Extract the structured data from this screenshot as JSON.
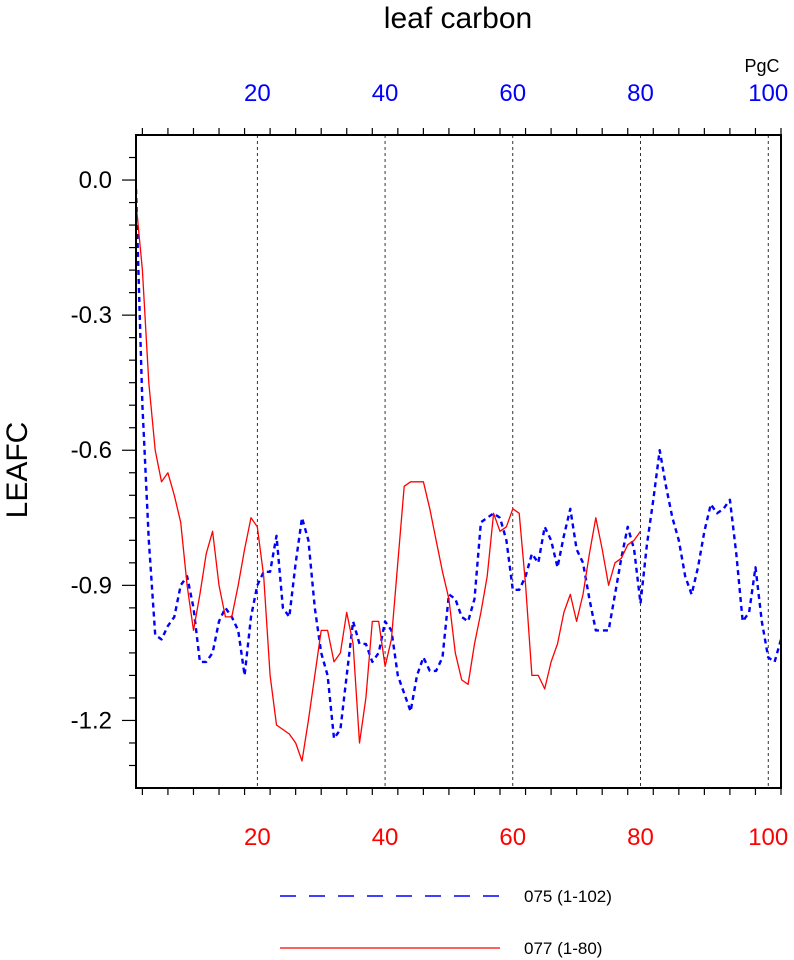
{
  "chart_data": {
    "type": "line",
    "title": "leaf carbon",
    "ylabel": "LEAFC",
    "top_axis_unit": "PgC",
    "ylim": [
      -1.35,
      0.1
    ],
    "y_ticks": [
      "0.0",
      "-0.3",
      "-0.6",
      "-0.9",
      "-1.2"
    ],
    "y_tick_values": [
      0.0,
      -0.3,
      -0.6,
      -0.9,
      -1.2
    ],
    "bottom_axis": {
      "xlim": [
        1,
        102
      ],
      "ticks": [
        "20",
        "40",
        "60",
        "80",
        "100"
      ],
      "tick_values": [
        20,
        40,
        60,
        80,
        100
      ],
      "color": "#ff0000"
    },
    "top_axis": {
      "xlim": [
        1,
        102
      ],
      "ticks": [
        "20",
        "40",
        "60",
        "80",
        "100"
      ],
      "tick_values": [
        20,
        40,
        60,
        80,
        100
      ],
      "color": "#0000ff"
    },
    "grid": "vertical dashed at major x ticks",
    "legend_position": "bottom",
    "series": [
      {
        "name": "075 (1-102)",
        "color": "#0000ff",
        "dash": "dashed",
        "x": [
          1,
          2,
          3,
          4,
          5,
          6,
          7,
          8,
          9,
          10,
          11,
          12,
          13,
          14,
          15,
          16,
          17,
          18,
          19,
          20,
          21,
          22,
          23,
          24,
          25,
          26,
          27,
          28,
          29,
          30,
          31,
          32,
          33,
          34,
          35,
          36,
          37,
          38,
          39,
          40,
          41,
          42,
          43,
          44,
          45,
          46,
          47,
          48,
          49,
          50,
          51,
          52,
          53,
          54,
          55,
          56,
          57,
          58,
          59,
          60,
          61,
          62,
          63,
          64,
          65,
          66,
          67,
          68,
          69,
          70,
          71,
          72,
          73,
          74,
          75,
          76,
          77,
          78,
          79,
          80,
          81,
          82,
          83,
          84,
          85,
          86,
          87,
          88,
          89,
          90,
          91,
          92,
          93,
          94,
          95,
          96,
          97,
          98,
          99,
          100,
          101,
          102
        ],
        "values": [
          -0.02,
          -0.5,
          -0.8,
          -1.01,
          -1.02,
          -0.99,
          -0.97,
          -0.9,
          -0.88,
          -0.95,
          -1.07,
          -1.07,
          -1.05,
          -0.98,
          -0.95,
          -0.97,
          -1.0,
          -1.1,
          -0.97,
          -0.9,
          -0.87,
          -0.87,
          -0.79,
          -0.95,
          -0.97,
          -0.85,
          -0.75,
          -0.8,
          -0.95,
          -1.05,
          -1.1,
          -1.24,
          -1.22,
          -1.1,
          -0.98,
          -1.03,
          -1.03,
          -1.07,
          -1.05,
          -0.98,
          -1.0,
          -1.1,
          -1.14,
          -1.18,
          -1.1,
          -1.06,
          -1.09,
          -1.09,
          -1.06,
          -0.92,
          -0.93,
          -0.97,
          -0.98,
          -0.93,
          -0.76,
          -0.75,
          -0.74,
          -0.75,
          -0.8,
          -0.91,
          -0.91,
          -0.88,
          -0.83,
          -0.85,
          -0.77,
          -0.8,
          -0.86,
          -0.79,
          -0.73,
          -0.82,
          -0.85,
          -0.93,
          -1.0,
          -1.0,
          -1.0,
          -0.92,
          -0.84,
          -0.77,
          -0.82,
          -0.94,
          -0.81,
          -0.71,
          -0.6,
          -0.68,
          -0.75,
          -0.8,
          -0.88,
          -0.92,
          -0.86,
          -0.78,
          -0.72,
          -0.74,
          -0.73,
          -0.71,
          -0.83,
          -0.98,
          -0.96,
          -0.86,
          -0.98,
          -1.06,
          -1.07,
          -1.02
        ]
      },
      {
        "name": "077 (1-80)",
        "color": "#ff0000",
        "dash": "solid",
        "x": [
          1,
          2,
          3,
          4,
          5,
          6,
          7,
          8,
          9,
          10,
          11,
          12,
          13,
          14,
          15,
          16,
          17,
          18,
          19,
          20,
          21,
          22,
          23,
          24,
          25,
          26,
          27,
          28,
          29,
          30,
          31,
          32,
          33,
          34,
          35,
          36,
          37,
          38,
          39,
          40,
          41,
          42,
          43,
          44,
          45,
          46,
          47,
          48,
          49,
          50,
          51,
          52,
          53,
          54,
          55,
          56,
          57,
          58,
          59,
          60,
          61,
          62,
          63,
          64,
          65,
          66,
          67,
          68,
          69,
          70,
          71,
          72,
          73,
          74,
          75,
          76,
          77,
          78,
          79,
          80
        ],
        "values": [
          -0.05,
          -0.2,
          -0.45,
          -0.6,
          -0.67,
          -0.65,
          -0.7,
          -0.76,
          -0.9,
          -1.0,
          -0.92,
          -0.83,
          -0.78,
          -0.9,
          -0.97,
          -0.97,
          -0.9,
          -0.82,
          -0.75,
          -0.77,
          -0.88,
          -1.1,
          -1.21,
          -1.22,
          -1.23,
          -1.25,
          -1.29,
          -1.2,
          -1.1,
          -1.0,
          -1.0,
          -1.07,
          -1.05,
          -0.96,
          -1.03,
          -1.25,
          -1.15,
          -0.98,
          -0.98,
          -1.08,
          -1.02,
          -0.85,
          -0.68,
          -0.67,
          -0.67,
          -0.67,
          -0.73,
          -0.8,
          -0.87,
          -0.93,
          -1.05,
          -1.11,
          -1.12,
          -1.03,
          -0.96,
          -0.88,
          -0.74,
          -0.78,
          -0.77,
          -0.73,
          -0.74,
          -0.9,
          -1.1,
          -1.1,
          -1.13,
          -1.07,
          -1.03,
          -0.96,
          -0.92,
          -0.98,
          -0.92,
          -0.83,
          -0.75,
          -0.82,
          -0.9,
          -0.85,
          -0.84,
          -0.81,
          -0.8,
          -0.78
        ]
      }
    ]
  }
}
